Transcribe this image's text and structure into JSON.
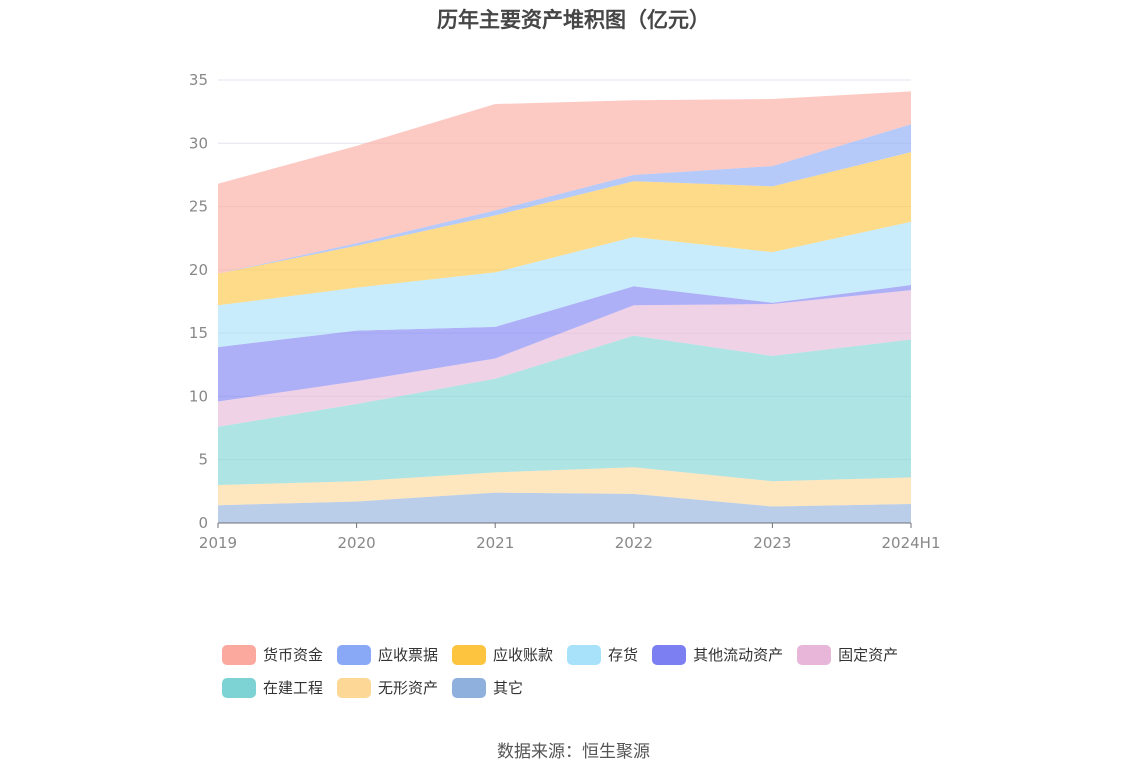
{
  "chart_data": {
    "type": "area",
    "stacked": true,
    "title": "历年主要资产堆积图（亿元）",
    "categories": [
      "2019",
      "2020",
      "2021",
      "2022",
      "2023",
      "2024H1"
    ],
    "ylim": [
      0,
      35
    ],
    "yticks": [
      0,
      5,
      10,
      15,
      20,
      25,
      30,
      35
    ],
    "grid": true,
    "legend_position": "bottom",
    "series": [
      {
        "name": "其它",
        "color": "#8fb0dd",
        "values": [
          1.4,
          1.7,
          2.4,
          2.3,
          1.3,
          1.5
        ]
      },
      {
        "name": "无形资产",
        "color": "#fdd796",
        "values": [
          1.6,
          1.6,
          1.6,
          2.1,
          2.0,
          2.1
        ]
      },
      {
        "name": "在建工程",
        "color": "#7dd3d3",
        "values": [
          4.6,
          6.1,
          7.4,
          10.4,
          9.9,
          10.9
        ]
      },
      {
        "name": "固定资产",
        "color": "#e7b6d9",
        "values": [
          2.0,
          1.8,
          1.6,
          2.4,
          4.1,
          3.9
        ]
      },
      {
        "name": "其他流动资产",
        "color": "#7c7ff2",
        "values": [
          4.3,
          4.0,
          2.5,
          1.5,
          0.1,
          0.4
        ]
      },
      {
        "name": "存货",
        "color": "#a7e1fa",
        "values": [
          3.3,
          3.4,
          4.3,
          3.9,
          4.0,
          5.0
        ]
      },
      {
        "name": "应收账款",
        "color": "#fdc53f",
        "values": [
          2.5,
          3.3,
          4.5,
          4.4,
          5.2,
          5.5
        ]
      },
      {
        "name": "应收票据",
        "color": "#89a9f7",
        "values": [
          0.0,
          0.2,
          0.4,
          0.5,
          1.6,
          2.2
        ]
      },
      {
        "name": "货币资金",
        "color": "#fba89e",
        "values": [
          7.1,
          7.7,
          8.4,
          5.9,
          5.3,
          2.6
        ]
      }
    ]
  },
  "legend": {
    "rows": [
      [
        {
          "label": "货币资金",
          "color": "#fba89e"
        },
        {
          "label": "应收票据",
          "color": "#89a9f7"
        },
        {
          "label": "应收账款",
          "color": "#fdc53f"
        },
        {
          "label": "存货",
          "color": "#a7e1fa"
        },
        {
          "label": "其他流动资产",
          "color": "#7c7ff2"
        },
        {
          "label": "固定资产",
          "color": "#e7b6d9"
        }
      ],
      [
        {
          "label": "在建工程",
          "color": "#7dd3d3"
        },
        {
          "label": "无形资产",
          "color": "#fdd796"
        },
        {
          "label": "其它",
          "color": "#8fb0dd"
        }
      ]
    ]
  },
  "source": "数据来源：恒生聚源"
}
